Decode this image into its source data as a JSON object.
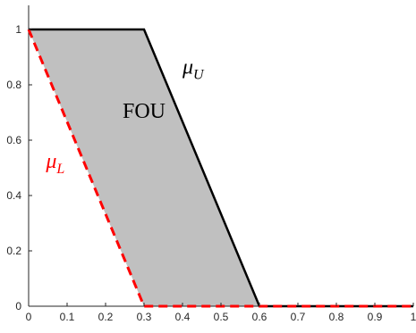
{
  "chart_data": {
    "type": "area",
    "title": "",
    "xlabel": "",
    "ylabel": "",
    "xlim": [
      0,
      1
    ],
    "ylim": [
      0,
      1
    ],
    "grid": false,
    "legend": "none",
    "x_ticks": [
      "0",
      "0.1",
      "0.2",
      "0.3",
      "0.4",
      "0.5",
      "0.6",
      "0.7",
      "0.8",
      "0.9",
      "1"
    ],
    "y_ticks": [
      "0",
      "0.2",
      "0.4",
      "0.6",
      "0.8",
      "1"
    ],
    "series": [
      {
        "x": [
          0,
          0.3,
          0.6,
          1
        ],
        "y": [
          1,
          1,
          0,
          0
        ],
        "color": "#000000",
        "style": "solid"
      },
      {
        "x": [
          0,
          0.3,
          1
        ],
        "y": [
          1,
          0,
          0
        ],
        "color": "#ff0000",
        "style": "dashed"
      }
    ],
    "fill_color": "#c0c0c0",
    "annotations": {
      "fou": {
        "text": "FOU",
        "x": 0.3,
        "y": 0.68,
        "color": "#000000"
      },
      "mu_u": {
        "symbol": "μ",
        "sub": "U",
        "x": 0.4,
        "y": 0.84,
        "color": "#000000"
      },
      "mu_l": {
        "symbol": "μ",
        "sub": "L",
        "x": 0.045,
        "y": 0.5,
        "color": "#ff0000"
      }
    }
  }
}
